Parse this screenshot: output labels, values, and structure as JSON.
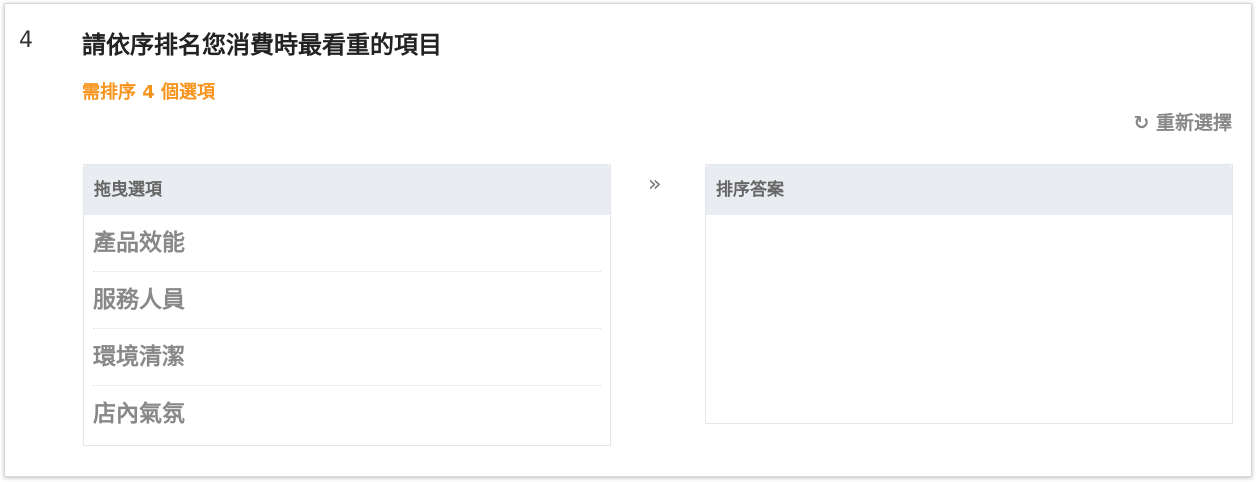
{
  "question": {
    "number": "4",
    "title": "請依序排名您消費時最看重的項目",
    "hint": "需排序 4 個選項"
  },
  "reset": {
    "icon": "refresh-icon",
    "label": "重新選擇"
  },
  "source_panel": {
    "header": "拖曳選項",
    "items": [
      "產品效能",
      "服務人員",
      "環境清潔",
      "店內氣氛"
    ]
  },
  "arrow": "»",
  "target_panel": {
    "header": "排序答案",
    "items": []
  },
  "colors": {
    "accent": "#f7941d",
    "header_bg": "#e9ecf0"
  }
}
